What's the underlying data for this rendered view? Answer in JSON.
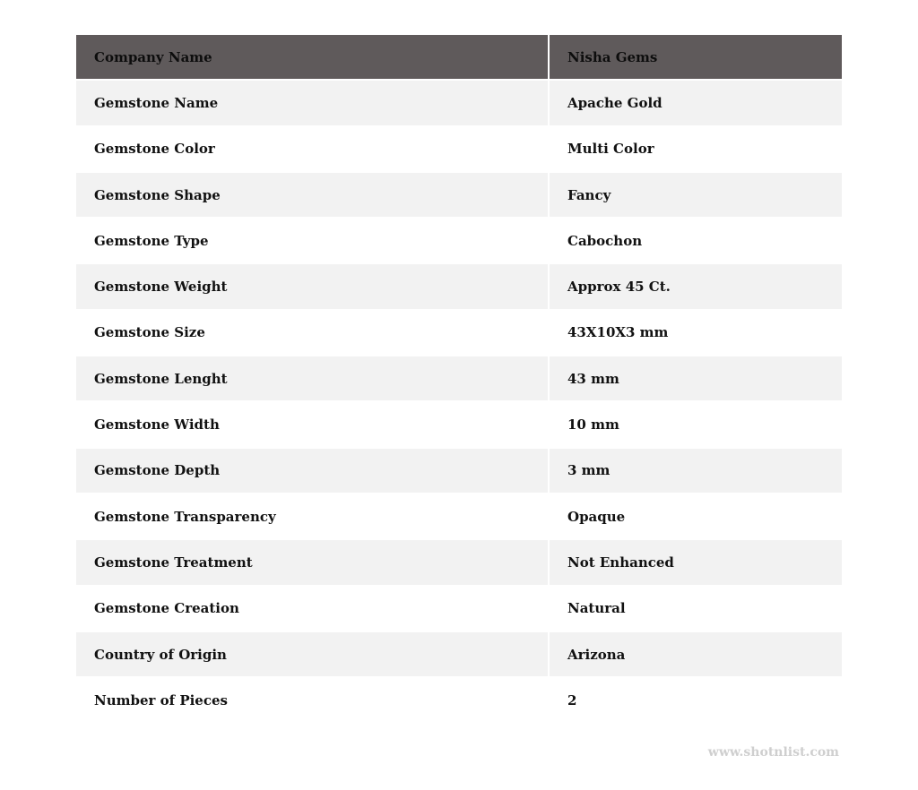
{
  "header": {
    "label": "Company Name",
    "value": "Nisha Gems"
  },
  "rows": [
    {
      "label": "Gemstone Name",
      "value": "Apache Gold"
    },
    {
      "label": "Gemstone Color",
      "value": "Multi Color"
    },
    {
      "label": "Gemstone Shape",
      "value": "Fancy"
    },
    {
      "label": "Gemstone Type",
      "value": "Cabochon"
    },
    {
      "label": "Gemstone Weight",
      "value": "Approx 45 Ct."
    },
    {
      "label": "Gemstone Size",
      "value": "43X10X3 mm"
    },
    {
      "label": "Gemstone Lenght",
      "value": "43 mm"
    },
    {
      "label": "Gemstone Width",
      "value": "10 mm"
    },
    {
      "label": "Gemstone Depth",
      "value": "3 mm"
    },
    {
      "label": "Gemstone Transparency",
      "value": "Opaque"
    },
    {
      "label": "Gemstone Treatment",
      "value": "Not Enhanced"
    },
    {
      "label": "Gemstone Creation",
      "value": "Natural"
    },
    {
      "label": "Country of Origin",
      "value": "Arizona"
    },
    {
      "label": "Number of Pieces",
      "value": "2"
    }
  ],
  "watermark": "www.shotnlist.com",
  "colors": {
    "header_bg": "#5f5a5b",
    "stripe_bg": "#f2f2f2",
    "watermark": "#cfcfcf"
  }
}
